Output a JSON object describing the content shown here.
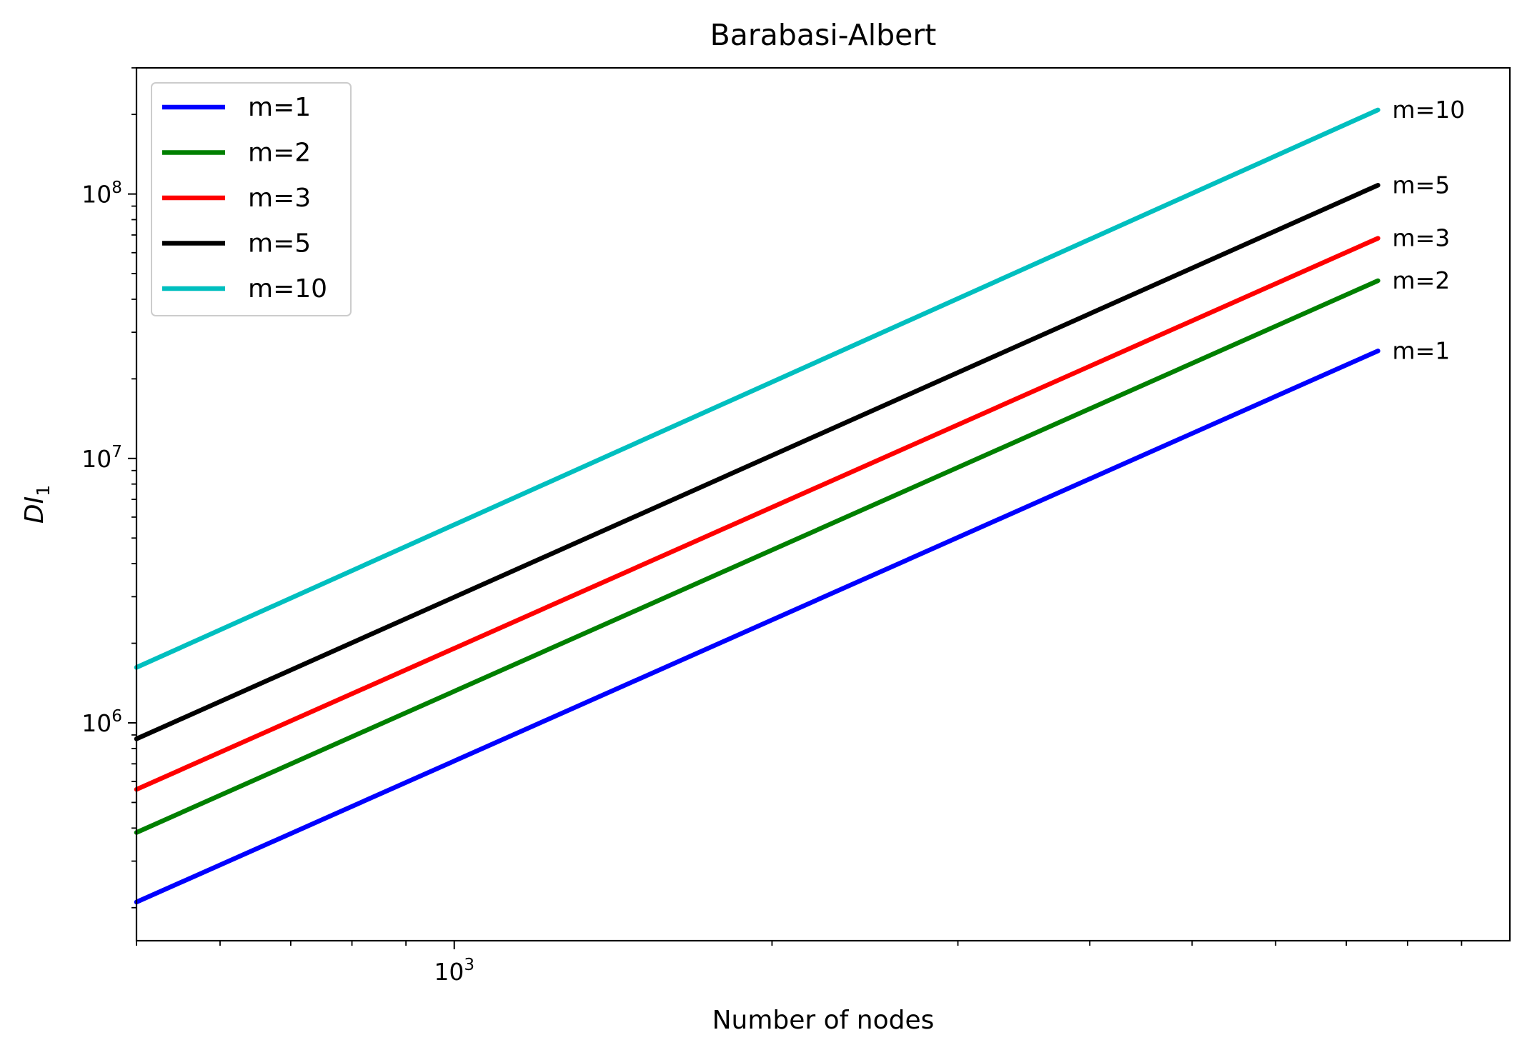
{
  "chart_data": {
    "type": "line",
    "title": "Barabasi-Albert",
    "xlabel": "Number of nodes",
    "ylabel_main": "DI",
    "ylabel_sub": "1",
    "xscale": "log",
    "yscale": "log",
    "xlim": [
      500,
      10000
    ],
    "ylim": [
      150000,
      300000000
    ],
    "x_major_ticks": [
      {
        "value": 1000,
        "base": "10",
        "exp": "3"
      }
    ],
    "x_minor_ticks": [
      500,
      600,
      700,
      800,
      900,
      2000,
      3000,
      4000,
      5000,
      6000,
      7000,
      8000,
      9000
    ],
    "y_major_ticks": [
      {
        "value": 1000000,
        "base": "10",
        "exp": "6"
      },
      {
        "value": 10000000,
        "base": "10",
        "exp": "7"
      },
      {
        "value": 100000000,
        "base": "10",
        "exp": "8"
      }
    ],
    "y_minor_ticks": [
      200000,
      300000,
      400000,
      500000,
      600000,
      700000,
      800000,
      900000,
      2000000,
      3000000,
      4000000,
      5000000,
      6000000,
      7000000,
      8000000,
      9000000,
      20000000,
      30000000,
      40000000,
      50000000,
      60000000,
      70000000,
      80000000,
      90000000,
      200000000,
      300000000
    ],
    "grid": false,
    "legend_position": "top-left",
    "series": [
      {
        "name": "m=1",
        "end_label": "m=1",
        "color": "#0000ff",
        "x": [
          500,
          7500
        ],
        "y": [
          210000,
          25500000
        ]
      },
      {
        "name": "m=2",
        "end_label": "m=2",
        "color": "#008000",
        "x": [
          500,
          7500
        ],
        "y": [
          385000,
          47000000
        ]
      },
      {
        "name": "m=3",
        "end_label": "m=3",
        "color": "#ff0000",
        "x": [
          500,
          7500
        ],
        "y": [
          560000,
          68000000
        ]
      },
      {
        "name": "m=5",
        "end_label": "m=5",
        "color": "#000000",
        "x": [
          500,
          7500
        ],
        "y": [
          870000,
          108000000
        ]
      },
      {
        "name": "m=10",
        "end_label": "m=10",
        "color": "#00bfbf",
        "x": [
          500,
          7500
        ],
        "y": [
          1620000,
          208000000
        ]
      }
    ]
  }
}
